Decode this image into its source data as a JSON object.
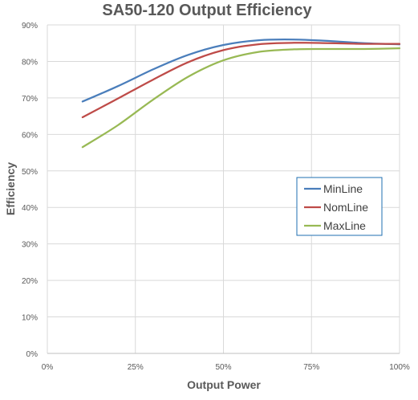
{
  "chart_data": {
    "type": "line",
    "title": "SA50-120 Output Efficiency",
    "xlabel": "Output Power",
    "ylabel": "Efficiency",
    "xlim": [
      0,
      100
    ],
    "ylim": [
      0,
      90
    ],
    "x_ticks": [
      "0%",
      "25%",
      "50%",
      "75%",
      "100%"
    ],
    "y_ticks": [
      "0%",
      "10%",
      "20%",
      "30%",
      "40%",
      "50%",
      "60%",
      "70%",
      "80%",
      "90%"
    ],
    "grid": true,
    "legend_position": "right-middle",
    "series": [
      {
        "name": "MinLine",
        "color": "#4a7ebb",
        "x": [
          10,
          20,
          30,
          40,
          50,
          60,
          70,
          80,
          90,
          100
        ],
        "y": [
          69,
          73.2,
          77.8,
          81.8,
          84.5,
          85.8,
          86,
          85.6,
          85,
          84.7
        ]
      },
      {
        "name": "NomLine",
        "color": "#be4b48",
        "x": [
          10,
          20,
          30,
          40,
          50,
          60,
          70,
          80,
          90,
          100
        ],
        "y": [
          64.7,
          69.8,
          75,
          79.8,
          83.1,
          84.7,
          85.1,
          85,
          84.8,
          84.8
        ]
      },
      {
        "name": "MaxLine",
        "color": "#98b954",
        "x": [
          10,
          20,
          30,
          40,
          50,
          60,
          70,
          80,
          90,
          100
        ],
        "y": [
          56.5,
          62.5,
          69.5,
          75.8,
          80.3,
          82.6,
          83.3,
          83.4,
          83.4,
          83.6
        ]
      }
    ]
  }
}
